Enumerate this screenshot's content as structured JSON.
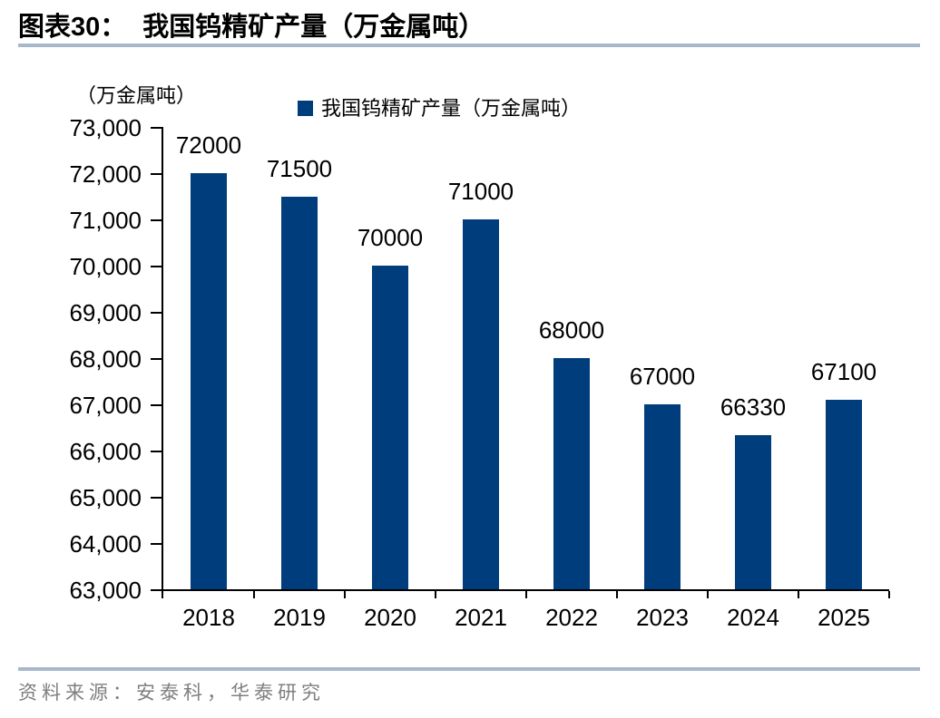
{
  "header": {
    "figure_label": "图表30：",
    "title": "我国钨精矿产量（万金属吨）"
  },
  "footer": {
    "source": "资料来源：安泰科，华泰研究"
  },
  "colors": {
    "bar": "#003d7c",
    "divider": "#a7b8cb",
    "source_text": "#7f7f7f",
    "axis": "#000000"
  },
  "chart_data": {
    "type": "bar",
    "title": "我国钨精矿产量（万金属吨）",
    "unit_label": "（万金属吨）",
    "legend_label": "我国钨精矿产量（万金属吨）",
    "legend_position": "top",
    "categories": [
      "2018",
      "2019",
      "2020",
      "2021",
      "2022",
      "2023",
      "2024",
      "2025"
    ],
    "values": [
      72000,
      71500,
      70000,
      71000,
      68000,
      67000,
      66330,
      67100
    ],
    "data_labels": [
      "72000",
      "71500",
      "70000",
      "71000",
      "68000",
      "67000",
      "66330",
      "67100"
    ],
    "xlabel": "",
    "ylabel": "",
    "ylim": [
      63000,
      73000
    ],
    "ytick_step": 1000,
    "ytick_labels": [
      "63,000",
      "64,000",
      "65,000",
      "66,000",
      "67,000",
      "68,000",
      "69,000",
      "70,000",
      "71,000",
      "72,000",
      "73,000"
    ],
    "grid": false
  }
}
